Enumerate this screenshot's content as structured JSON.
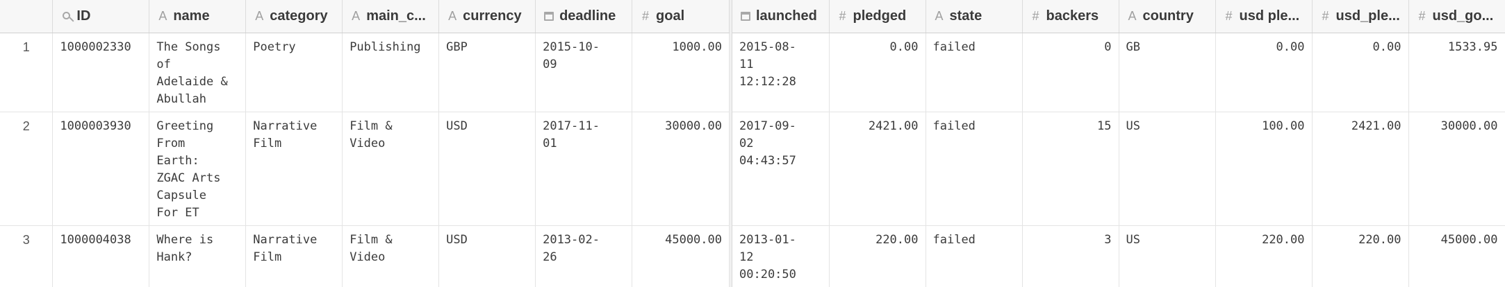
{
  "left_columns": [
    {
      "label": "",
      "icon": "none"
    },
    {
      "label": "ID",
      "icon": "key-icon"
    },
    {
      "label": "name",
      "icon": "text-type-icon"
    },
    {
      "label": "category",
      "icon": "text-type-icon"
    },
    {
      "label": "main_c...",
      "icon": "text-type-icon"
    },
    {
      "label": "currency",
      "icon": "text-type-icon"
    },
    {
      "label": "deadline",
      "icon": "calendar-icon"
    },
    {
      "label": "goal",
      "icon": "hash-icon"
    }
  ],
  "right_columns": [
    {
      "label": "launched",
      "icon": "calendar-icon"
    },
    {
      "label": "pledged",
      "icon": "hash-icon"
    },
    {
      "label": "state",
      "icon": "text-type-icon"
    },
    {
      "label": "backers",
      "icon": "hash-icon"
    },
    {
      "label": "country",
      "icon": "text-type-icon"
    },
    {
      "label": "usd ple...",
      "icon": "hash-icon"
    },
    {
      "label": "usd_ple...",
      "icon": "hash-icon"
    },
    {
      "label": "usd_go...",
      "icon": "hash-icon"
    }
  ],
  "rows": [
    {
      "left": [
        "1",
        "1000002330",
        "The Songs\nof\nAdelaide &\nAbullah",
        "Poetry",
        "Publishing",
        "GBP",
        "2015-10-\n09",
        "1000.00"
      ],
      "right": [
        "2015-08-\n11\n12:12:28",
        "0.00",
        "failed",
        "0",
        "GB",
        "0.00",
        "0.00",
        "1533.95"
      ]
    },
    {
      "left": [
        "2",
        "1000003930",
        "Greeting\nFrom\nEarth:\nZGAC Arts\nCapsule\nFor ET",
        "Narrative\nFilm",
        "Film &\nVideo",
        "USD",
        "2017-11-\n01",
        "30000.00"
      ],
      "right": [
        "2017-09-\n02\n04:43:57",
        "2421.00",
        "failed",
        "15",
        "US",
        "100.00",
        "2421.00",
        "30000.00"
      ]
    },
    {
      "left": [
        "3",
        "1000004038",
        "Where is\nHank?",
        "Narrative\nFilm",
        "Film &\nVideo",
        "USD",
        "2013-02-\n26",
        "45000.00"
      ],
      "right": [
        "2013-01-\n12\n00:20:50",
        "220.00",
        "failed",
        "3",
        "US",
        "220.00",
        "220.00",
        "45000.00"
      ]
    }
  ]
}
